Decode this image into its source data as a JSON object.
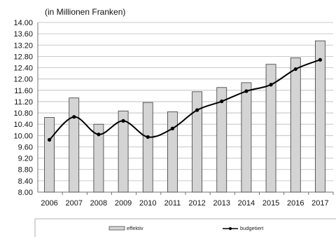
{
  "chart_data": {
    "type": "bar",
    "unit_note": "(in Millionen Franken)",
    "categories": [
      "2006",
      "2007",
      "2008",
      "2009",
      "2010",
      "2011",
      "2012",
      "2013",
      "2014",
      "2015",
      "2016",
      "2017"
    ],
    "series": [
      {
        "name": "effektiv",
        "type": "bar",
        "color": "#d4d4d4",
        "values": [
          10.64,
          11.33,
          10.4,
          10.87,
          11.17,
          10.84,
          11.55,
          11.7,
          11.87,
          12.52,
          12.75,
          13.35
        ]
      },
      {
        "name": "budgetiert",
        "type": "line",
        "color": "#000000",
        "values": [
          9.85,
          10.66,
          10.04,
          10.52,
          9.95,
          10.25,
          10.9,
          11.21,
          11.57,
          11.8,
          12.35,
          12.68
        ]
      }
    ],
    "y_ticks": [
      "8.00",
      "8.40",
      "8.80",
      "9.20",
      "9.60",
      "10.00",
      "10.40",
      "10.80",
      "11.20",
      "11.60",
      "12.00",
      "12.40",
      "12.80",
      "13.20",
      "13.60",
      "14.00"
    ],
    "ylim": [
      8.0,
      14.0
    ],
    "grid": true,
    "legend_position": "bottom"
  }
}
